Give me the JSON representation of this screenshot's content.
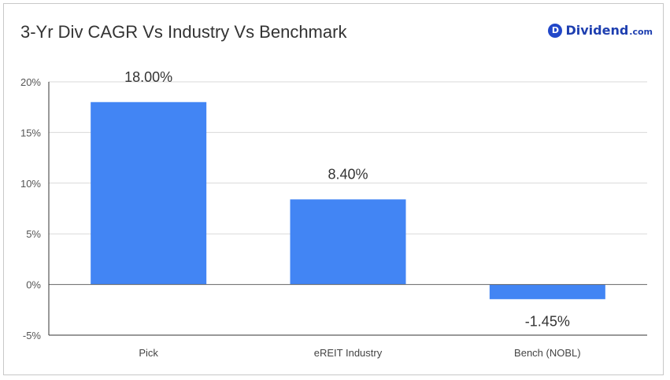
{
  "title": "3-Yr Div CAGR Vs Industry Vs Benchmark",
  "brand": {
    "badge": "D",
    "name": "Dividend",
    "tld": ".com"
  },
  "colors": {
    "bar": "#4285f4",
    "grid": "#d9d9d9",
    "axis": "#333333"
  },
  "chart_data": {
    "type": "bar",
    "categories": [
      "Pick",
      "eREIT Industry",
      "Bench (NOBL)"
    ],
    "values": [
      18.0,
      8.4,
      -1.45
    ],
    "data_labels": [
      "18.00%",
      "8.40%",
      "-1.45%"
    ],
    "ylim": [
      -5,
      20
    ],
    "yticks": [
      20,
      15,
      10,
      5,
      0,
      -5
    ],
    "ytick_labels": [
      "20%",
      "15%",
      "10%",
      "5%",
      "0%",
      "-5%"
    ],
    "grid": true,
    "title": "3-Yr Div CAGR Vs Industry Vs Benchmark"
  }
}
